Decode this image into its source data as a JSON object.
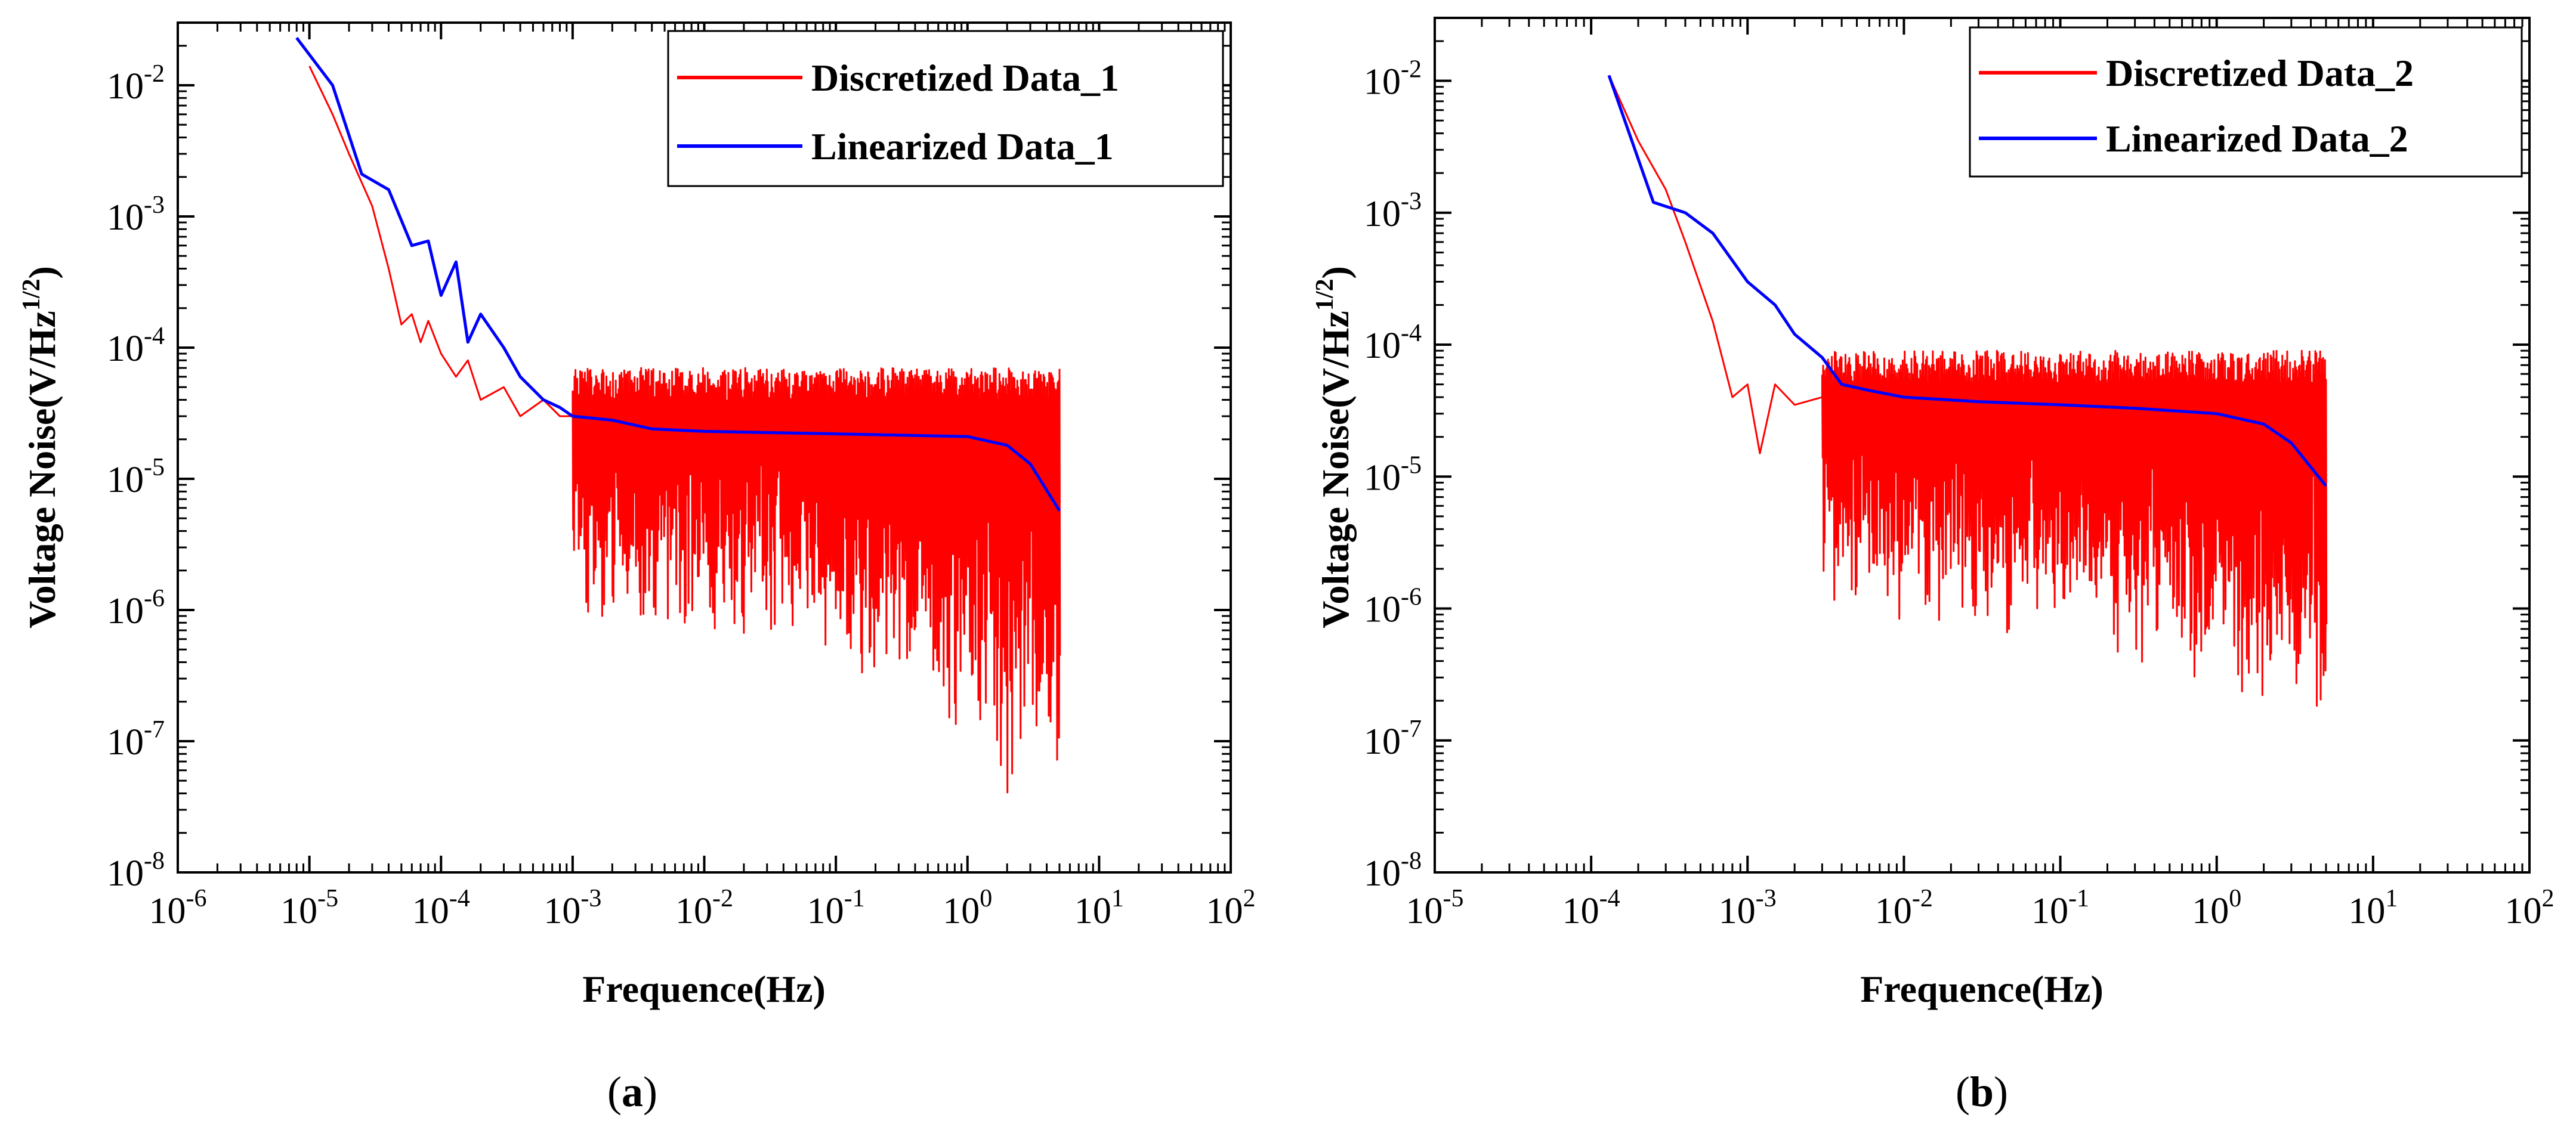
{
  "chart_data": [
    {
      "type": "line",
      "panel_label": "a",
      "xlabel": "Frequence(Hz)",
      "ylabel": "Voltage Noise(V/Hz",
      "ylabel_superscript": "1/2",
      "ylabel_suffix": ")",
      "x_scale": "log",
      "y_scale": "log",
      "xlim": [
        1e-06,
        100
      ],
      "ylim": [
        1e-08,
        0.03
      ],
      "x_ticks": [
        {
          "base": "10",
          "exp": "-6",
          "value": 1e-06
        },
        {
          "base": "10",
          "exp": "-5",
          "value": 1e-05
        },
        {
          "base": "10",
          "exp": "-4",
          "value": 0.0001
        },
        {
          "base": "10",
          "exp": "-3",
          "value": 0.001
        },
        {
          "base": "10",
          "exp": "-2",
          "value": 0.01
        },
        {
          "base": "10",
          "exp": "-1",
          "value": 0.1
        },
        {
          "base": "10",
          "exp": "0",
          "value": 1
        },
        {
          "base": "10",
          "exp": "1",
          "value": 10
        },
        {
          "base": "10",
          "exp": "2",
          "value": 100
        }
      ],
      "y_ticks": [
        {
          "base": "10",
          "exp": "-8",
          "value": 1e-08
        },
        {
          "base": "10",
          "exp": "-7",
          "value": 1e-07
        },
        {
          "base": "10",
          "exp": "-6",
          "value": 1e-06
        },
        {
          "base": "10",
          "exp": "-5",
          "value": 1e-05
        },
        {
          "base": "10",
          "exp": "-4",
          "value": 0.0001
        },
        {
          "base": "10",
          "exp": "-3",
          "value": 0.001
        },
        {
          "base": "10",
          "exp": "-2",
          "value": 0.01
        }
      ],
      "legend_position": "top-right",
      "grid": false,
      "series": [
        {
          "name": "Discretized Data_1",
          "color": "#ff0000",
          "points": [
            [
              1e-05,
              0.014
            ],
            [
              1.5e-05,
              0.006
            ],
            [
              2e-05,
              0.003
            ],
            [
              3e-05,
              0.0012
            ],
            [
              4e-05,
              0.0004
            ],
            [
              5e-05,
              0.00015
            ],
            [
              6e-05,
              0.00018
            ],
            [
              7e-05,
              0.00011
            ],
            [
              8e-05,
              0.00016
            ],
            [
              0.0001,
              9e-05
            ],
            [
              0.00013,
              6e-05
            ],
            [
              0.00016,
              8e-05
            ],
            [
              0.0002,
              4e-05
            ],
            [
              0.0003,
              5e-05
            ],
            [
              0.0004,
              3e-05
            ],
            [
              0.0006,
              4e-05
            ],
            [
              0.0008,
              3e-05
            ],
            [
              0.001,
              3e-05
            ]
          ],
          "noise_band": {
            "x_from": 0.001,
            "x_to": 5,
            "upper": 7e-05,
            "lower_typical": 2e-06,
            "lower_min": 2.5e-08
          }
        },
        {
          "name": "Linearized Data_1",
          "color": "#0000ff",
          "points": [
            [
              8e-06,
              0.023
            ],
            [
              1.5e-05,
              0.01
            ],
            [
              2.5e-05,
              0.0021
            ],
            [
              4e-05,
              0.0016
            ],
            [
              6e-05,
              0.0006
            ],
            [
              8e-05,
              0.00065
            ],
            [
              0.0001,
              0.00025
            ],
            [
              0.00013,
              0.00045
            ],
            [
              0.00016,
              0.00011
            ],
            [
              0.0002,
              0.00018
            ],
            [
              0.0003,
              0.0001
            ],
            [
              0.0004,
              6e-05
            ],
            [
              0.0006,
              4e-05
            ],
            [
              0.0008,
              3.5e-05
            ],
            [
              0.001,
              3e-05
            ],
            [
              0.002,
              2.8e-05
            ],
            [
              0.004,
              2.4e-05
            ],
            [
              0.01,
              2.3e-05
            ],
            [
              0.1,
              2.2e-05
            ],
            [
              1,
              2.1e-05
            ],
            [
              2,
              1.8e-05
            ],
            [
              3,
              1.3e-05
            ],
            [
              5,
              5.7e-06
            ]
          ]
        }
      ]
    },
    {
      "type": "line",
      "panel_label": "b",
      "xlabel": "Frequence(Hz)",
      "ylabel": "Voltage Noise(V/Hz",
      "ylabel_superscript": "1/2",
      "ylabel_suffix": ")",
      "x_scale": "log",
      "y_scale": "log",
      "xlim": [
        1e-05,
        100
      ],
      "ylim": [
        1e-08,
        0.03
      ],
      "x_ticks": [
        {
          "base": "10",
          "exp": "-5",
          "value": 1e-05
        },
        {
          "base": "10",
          "exp": "-4",
          "value": 0.0001
        },
        {
          "base": "10",
          "exp": "-3",
          "value": 0.001
        },
        {
          "base": "10",
          "exp": "-2",
          "value": 0.01
        },
        {
          "base": "10",
          "exp": "-1",
          "value": 0.1
        },
        {
          "base": "10",
          "exp": "0",
          "value": 1
        },
        {
          "base": "10",
          "exp": "1",
          "value": 10
        },
        {
          "base": "10",
          "exp": "2",
          "value": 100
        }
      ],
      "y_ticks": [
        {
          "base": "10",
          "exp": "-8",
          "value": 1e-08
        },
        {
          "base": "10",
          "exp": "-7",
          "value": 1e-07
        },
        {
          "base": "10",
          "exp": "-6",
          "value": 1e-06
        },
        {
          "base": "10",
          "exp": "-5",
          "value": 1e-05
        },
        {
          "base": "10",
          "exp": "-4",
          "value": 0.0001
        },
        {
          "base": "10",
          "exp": "-3",
          "value": 0.001
        },
        {
          "base": "10",
          "exp": "-2",
          "value": 0.01
        }
      ],
      "legend_position": "top-right",
      "grid": false,
      "series": [
        {
          "name": "Discretized Data_2",
          "color": "#ff0000",
          "points": [
            [
              0.00013,
              0.011
            ],
            [
              0.0002,
              0.0035
            ],
            [
              0.0003,
              0.0015
            ],
            [
              0.0004,
              0.0006
            ],
            [
              0.0006,
              0.00015
            ],
            [
              0.0008,
              4e-05
            ],
            [
              0.001,
              5e-05
            ],
            [
              0.0012,
              1.5e-05
            ],
            [
              0.0015,
              5e-05
            ],
            [
              0.002,
              3.5e-05
            ],
            [
              0.003,
              4e-05
            ]
          ],
          "noise_band": {
            "x_from": 0.003,
            "x_to": 5,
            "upper": 9e-05,
            "lower_typical": 2e-06,
            "lower_min": 9e-08
          }
        },
        {
          "name": "Linearized Data_2",
          "color": "#0000ff",
          "points": [
            [
              0.00013,
              0.011
            ],
            [
              0.00025,
              0.0012
            ],
            [
              0.0004,
              0.001
            ],
            [
              0.0006,
              0.0007
            ],
            [
              0.001,
              0.0003
            ],
            [
              0.0015,
              0.0002
            ],
            [
              0.002,
              0.00012
            ],
            [
              0.003,
              8e-05
            ],
            [
              0.004,
              5e-05
            ],
            [
              0.006,
              4.5e-05
            ],
            [
              0.01,
              4e-05
            ],
            [
              0.03,
              3.7e-05
            ],
            [
              0.1,
              3.5e-05
            ],
            [
              0.3,
              3.3e-05
            ],
            [
              1,
              3e-05
            ],
            [
              2,
              2.5e-05
            ],
            [
              3,
              1.8e-05
            ],
            [
              5,
              8.5e-06
            ]
          ]
        }
      ]
    }
  ]
}
